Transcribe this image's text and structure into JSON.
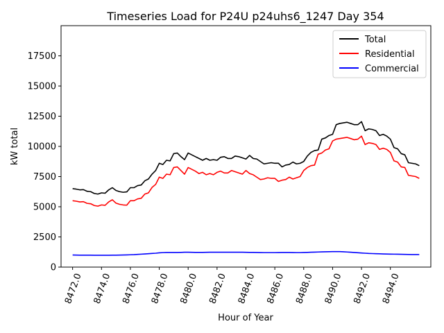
{
  "chart_data": {
    "type": "line",
    "title": "Timeseries Load for P24U p24uhs6_1247  Day 354",
    "xlabel": "Hour of Year",
    "ylabel": "kW total",
    "xlim": [
      8471.2,
      8496.8
    ],
    "ylim": [
      0,
      20000
    ],
    "x_ticks": [
      8472.0,
      8474.0,
      8476.0,
      8478.0,
      8480.0,
      8482.0,
      8484.0,
      8486.0,
      8488.0,
      8490.0,
      8492.0,
      8494.0
    ],
    "x_tick_labels": [
      "8472.0",
      "8474.0",
      "8476.0",
      "8478.0",
      "8480.0",
      "8482.0",
      "8484.0",
      "8486.0",
      "8488.0",
      "8490.0",
      "8492.0",
      "8494.0"
    ],
    "y_ticks": [
      0,
      2500,
      5000,
      7500,
      10000,
      12500,
      15000,
      17500
    ],
    "y_tick_labels": [
      "0",
      "2500",
      "5000",
      "7500",
      "10000",
      "12500",
      "15000",
      "17500"
    ],
    "legend_position": "top-right",
    "x_start": 8472.0,
    "x_step": 0.25,
    "series": [
      {
        "name": "Total",
        "color": "#000000",
        "values": [
          6500,
          6460,
          6400,
          6420,
          6280,
          6250,
          6100,
          6050,
          6150,
          6120,
          6400,
          6580,
          6350,
          6250,
          6200,
          6230,
          6580,
          6580,
          6750,
          6800,
          7150,
          7300,
          7700,
          8000,
          8600,
          8500,
          8850,
          8800,
          9400,
          9450,
          9150,
          8900,
          9450,
          9300,
          9150,
          9000,
          8850,
          9000,
          8850,
          8900,
          8850,
          9100,
          9150,
          9000,
          9000,
          9200,
          9150,
          9050,
          8950,
          9250,
          9000,
          8950,
          8750,
          8550,
          8600,
          8650,
          8600,
          8600,
          8300,
          8450,
          8500,
          8700,
          8550,
          8600,
          8750,
          9200,
          9500,
          9650,
          9700,
          10600,
          10700,
          10900,
          11000,
          11800,
          11900,
          11950,
          12000,
          11900,
          11800,
          11800,
          12050,
          11300,
          11450,
          11400,
          11300,
          10900,
          11000,
          10850,
          10600,
          9900,
          9800,
          9400,
          9300,
          8650,
          8600,
          8550,
          8400
        ]
      },
      {
        "name": "Residential",
        "color": "#ff0000",
        "values": [
          5500,
          5460,
          5400,
          5420,
          5280,
          5250,
          5100,
          5050,
          5150,
          5120,
          5400,
          5580,
          5300,
          5200,
          5150,
          5130,
          5500,
          5500,
          5650,
          5700,
          6050,
          6150,
          6600,
          6850,
          7450,
          7350,
          7700,
          7650,
          8250,
          8300,
          8000,
          7700,
          8250,
          8100,
          7950,
          7750,
          7850,
          7650,
          7750,
          7650,
          7850,
          7950,
          7800,
          7800,
          8000,
          7900,
          7800,
          7700,
          8000,
          7750,
          7650,
          7450,
          7250,
          7300,
          7400,
          7350,
          7350,
          7100,
          7200,
          7250,
          7450,
          7300,
          7400,
          7500,
          8000,
          8250,
          8400,
          8450,
          9350,
          9450,
          9700,
          9800,
          10450,
          10600,
          10650,
          10700,
          10750,
          10650,
          10550,
          10600,
          10850,
          10150,
          10300,
          10250,
          10150,
          9750,
          9850,
          9750,
          9500,
          8800,
          8700,
          8300,
          8250,
          7600,
          7550,
          7500,
          7350
        ]
      },
      {
        "name": "Commercial",
        "color": "#0000ff",
        "values": [
          1000,
          995,
          990,
          990,
          985,
          985,
          980,
          980,
          980,
          980,
          980,
          985,
          990,
          995,
          1000,
          1010,
          1020,
          1030,
          1050,
          1070,
          1090,
          1110,
          1130,
          1150,
          1180,
          1200,
          1210,
          1210,
          1210,
          1210,
          1220,
          1230,
          1230,
          1225,
          1220,
          1220,
          1220,
          1225,
          1230,
          1230,
          1230,
          1230,
          1230,
          1230,
          1230,
          1230,
          1230,
          1230,
          1225,
          1220,
          1215,
          1210,
          1205,
          1200,
          1200,
          1200,
          1200,
          1205,
          1210,
          1210,
          1210,
          1205,
          1200,
          1200,
          1210,
          1220,
          1230,
          1240,
          1250,
          1260,
          1270,
          1275,
          1280,
          1280,
          1280,
          1270,
          1250,
          1230,
          1210,
          1190,
          1170,
          1150,
          1130,
          1120,
          1110,
          1100,
          1090,
          1080,
          1075,
          1070,
          1065,
          1060,
          1050,
          1045,
          1040,
          1040,
          1040
        ]
      }
    ]
  }
}
